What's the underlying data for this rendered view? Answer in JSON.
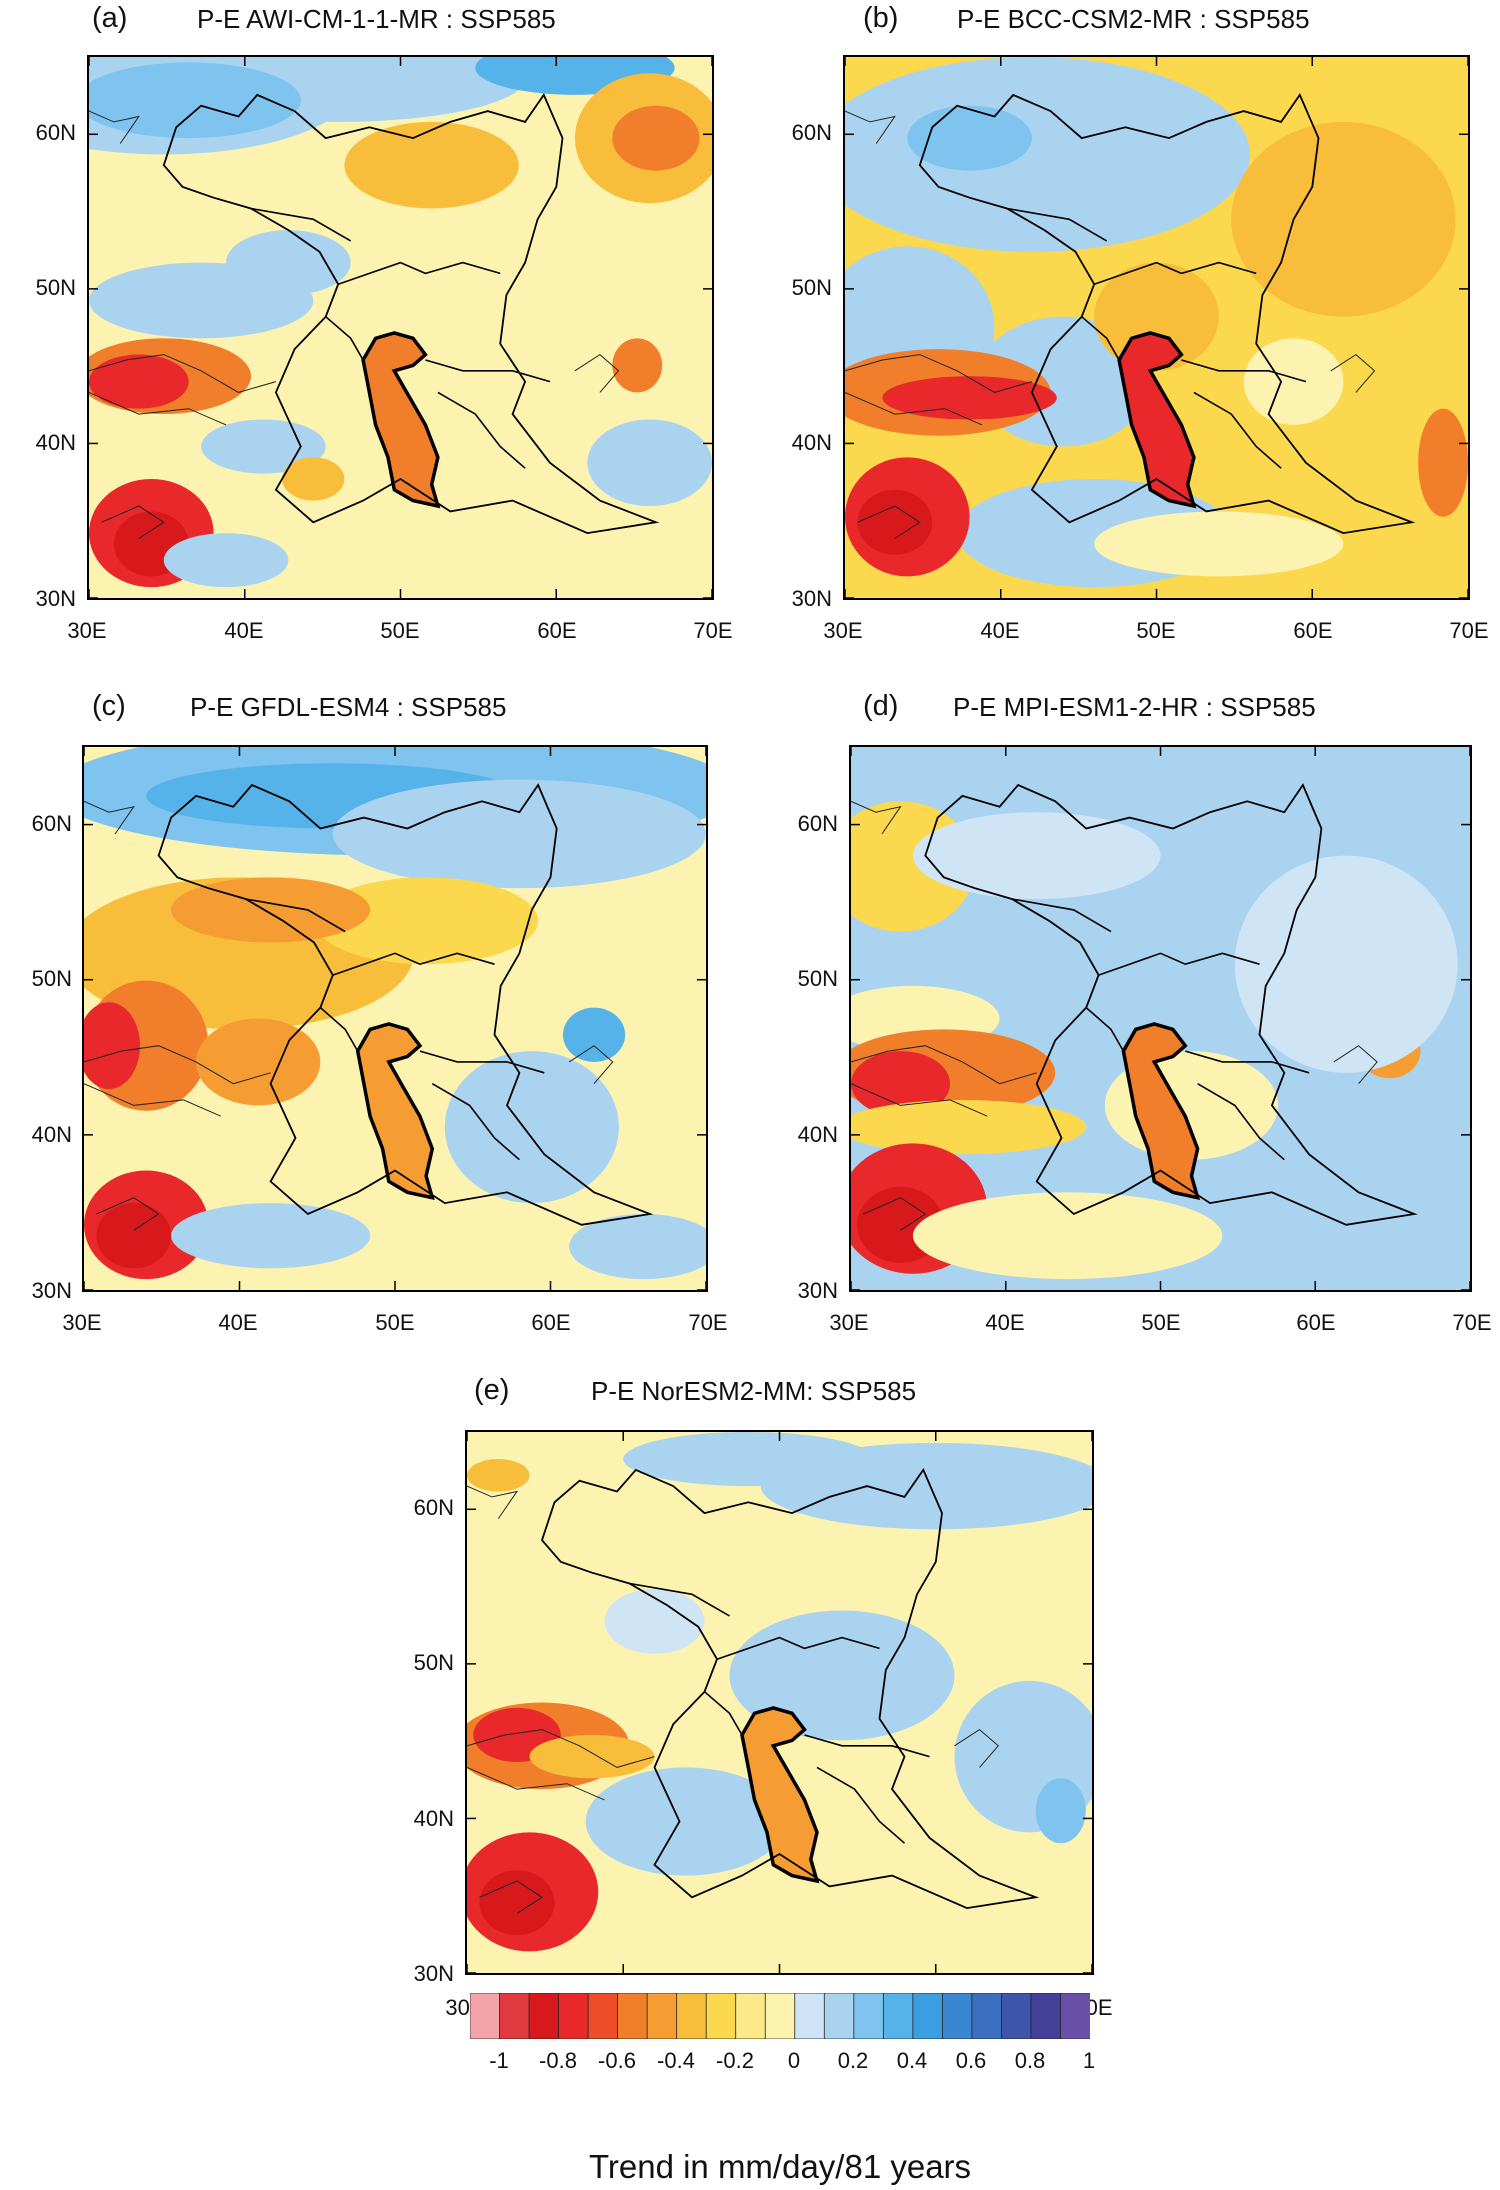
{
  "panels": [
    {
      "letter": "(a)",
      "title": "P-E AWI-CM-1-1-MR : SSP585"
    },
    {
      "letter": "(b)",
      "title": "P-E BCC-CSM2-MR : SSP585"
    },
    {
      "letter": "(c)",
      "title": "P-E GFDL-ESM4 : SSP585"
    },
    {
      "letter": "(d)",
      "title": "P-E MPI-ESM1-2-HR : SSP585"
    },
    {
      "letter": "(e)",
      "title": "P-E NorESM2-MM: SSP585"
    }
  ],
  "axes": {
    "lat_labels": [
      "60N",
      "50N",
      "40N",
      "30N"
    ],
    "lon_labels": [
      "30E",
      "40E",
      "50E",
      "60E",
      "70E"
    ]
  },
  "colorbar": {
    "title": "Trend in mm/day/81 years",
    "labels": [
      "-1",
      "-0.8",
      "-0.6",
      "-0.4",
      "-0.2",
      "0",
      "0.2",
      "0.4",
      "0.6",
      "0.8",
      "1"
    ],
    "colors": [
      "#f4a3a8",
      "#e03a3e",
      "#d7191c",
      "#e8282a",
      "#ee4d2a",
      "#f07e2a",
      "#f59d32",
      "#f8bd3a",
      "#fbd84d",
      "#fbe98a",
      "#fcf3b0",
      "#cfe5f5",
      "#aad3f0",
      "#7fc3ef",
      "#55b3ea",
      "#3a9ee0",
      "#3b86d0",
      "#3d6fc0",
      "#3f55ac",
      "#43409a",
      "#6a4fa8"
    ]
  }
}
